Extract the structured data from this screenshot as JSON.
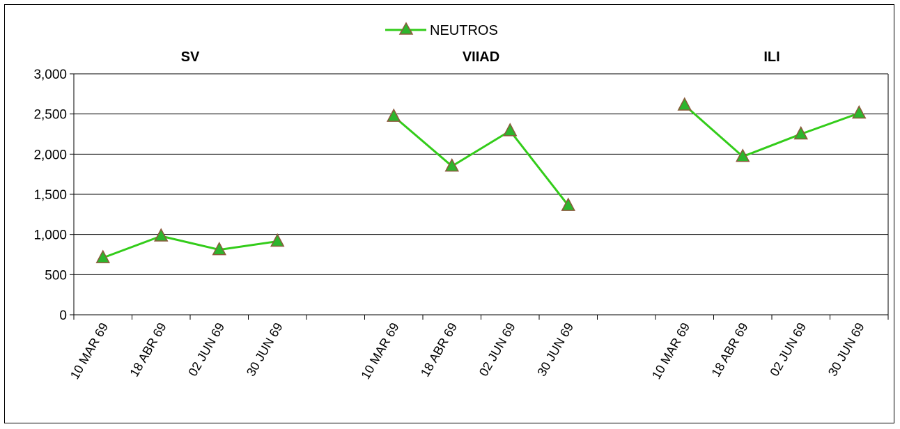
{
  "chart_data": {
    "type": "line",
    "groups": [
      "SV",
      "VIIAD",
      "ILI"
    ],
    "categories": [
      "10 MAR 69",
      "18 ABR 69",
      "02 JUN 69",
      "30 JUN 69"
    ],
    "series": [
      {
        "name": "NEUTROS",
        "color": "#33cc1a",
        "marker": "triangle",
        "marker_fill": "#2db52d",
        "marker_stroke": "#8b5a3c",
        "values": {
          "SV": [
            710,
            980,
            810,
            915
          ],
          "VIIAD": [
            2470,
            1850,
            2290,
            1360
          ],
          "ILI": [
            2610,
            1970,
            2250,
            2510
          ]
        }
      }
    ],
    "y_ticks": [
      "0",
      "500",
      "1,000",
      "1,500",
      "2,000",
      "2,500",
      "3,000"
    ],
    "ylim": [
      0,
      3000
    ],
    "grid": "horizontal",
    "legend_position": "top-center",
    "title": "",
    "xlabel": "",
    "ylabel": ""
  }
}
